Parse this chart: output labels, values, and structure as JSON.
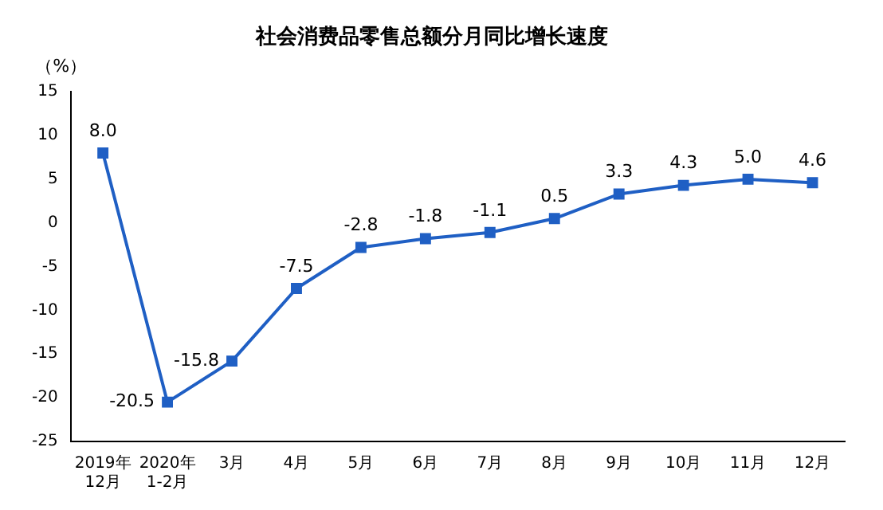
{
  "chart_data": {
    "type": "line",
    "title": "社会消费品零售总额分月同比增长速度",
    "ylabel": "（%）",
    "categories": [
      "2019年\n12月",
      "2020年\n1-2月",
      "3月",
      "4月",
      "5月",
      "6月",
      "7月",
      "8月",
      "9月",
      "10月",
      "11月",
      "12月"
    ],
    "values": [
      8.0,
      -20.5,
      -15.8,
      -7.5,
      -2.8,
      -1.8,
      -1.1,
      0.5,
      3.3,
      4.3,
      5.0,
      4.6
    ],
    "value_labels": [
      "8.0",
      "-20.5",
      "-15.8",
      "-7.5",
      "-2.8",
      "-1.8",
      "-1.1",
      "0.5",
      "3.3",
      "4.3",
      "5.0",
      "4.6"
    ],
    "color": "#1f5fc4",
    "marker": "square",
    "line_style": "solid",
    "ylim": [
      -25,
      15
    ],
    "yticks": [
      -25,
      -20,
      -15,
      -10,
      -5,
      0,
      5,
      10,
      15
    ],
    "grid": false,
    "legend": false
  }
}
